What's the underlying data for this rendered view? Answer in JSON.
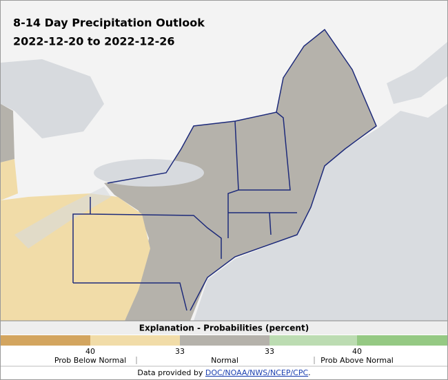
{
  "map": {
    "title": "8-14 Day Precipitation Outlook",
    "subtitle": "2022-12-20 to 2022-12-26"
  },
  "legend": {
    "title": "Explanation - Probabilities (percent)",
    "colors": [
      "#d3a55f",
      "#f1dca8",
      "#b5b2ab",
      "#bcdcb2",
      "#95c983"
    ],
    "thresholds": [
      40,
      33,
      33,
      40
    ],
    "labels": [
      "Prob Below Normal",
      "Normal",
      "Prob Above Normal"
    ]
  },
  "footer": {
    "prefix": "Data provided by ",
    "link": "DOC/NOAA/NWS/NCEP/CPC",
    "suffix": "."
  }
}
